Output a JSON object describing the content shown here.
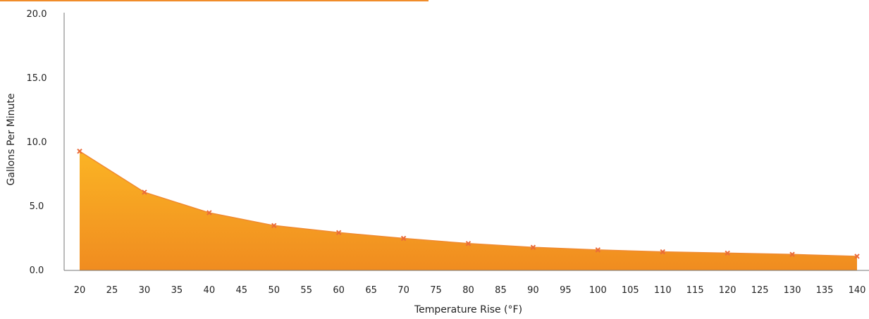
{
  "chart_data": {
    "type": "area",
    "title": "",
    "xlabel": "Temperature Rise (°F)",
    "ylabel": "Gallons Per Minute",
    "xlim": [
      20,
      140
    ],
    "ylim": [
      0,
      20
    ],
    "x_ticks": [
      20,
      25,
      30,
      35,
      40,
      45,
      50,
      55,
      60,
      65,
      70,
      75,
      80,
      85,
      90,
      95,
      100,
      105,
      110,
      115,
      120,
      125,
      130,
      135,
      140
    ],
    "y_ticks": [
      "0.0",
      "5.0",
      "10.0",
      "15.0",
      "20.0"
    ],
    "grid": false,
    "legend": "none",
    "series": [
      {
        "x": [
          20,
          30,
          40,
          50,
          60,
          70,
          80,
          90,
          100,
          110,
          120,
          130,
          140
        ],
        "y": [
          9.3,
          6.1,
          4.5,
          3.5,
          2.95,
          2.5,
          2.1,
          1.8,
          1.6,
          1.45,
          1.35,
          1.25,
          1.1
        ]
      }
    ]
  },
  "colors": {
    "accent": "#f08c2a",
    "fill_top": "#fbb424",
    "fill_bottom": "#f08c20",
    "line": "#f08a30",
    "marker": "#ea6b3a",
    "axis": "#777777"
  }
}
